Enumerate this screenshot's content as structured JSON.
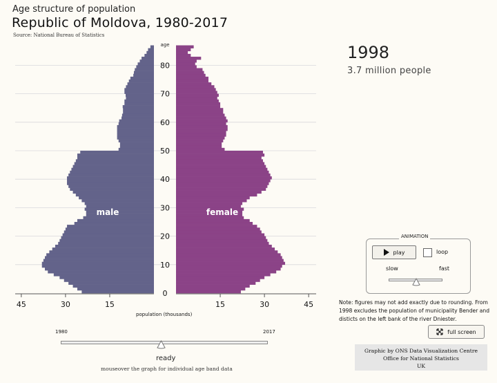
{
  "header": {
    "subtitle": "Age structure of population",
    "title": "Republic of Moldova, 1980-2017",
    "source": "Source: National Bureau of Statistics"
  },
  "info": {
    "year": "1998",
    "population": "3.7 million people"
  },
  "chart_data": {
    "type": "bar",
    "orientation": "horizontal-pyramid",
    "y_axis_title": "age",
    "xlabel": "population (thousands)",
    "x_ticks_left": [
      "45",
      "30",
      "15"
    ],
    "x_ticks_right": [
      "15",
      "30",
      "45"
    ],
    "xlim": [
      0,
      45
    ],
    "y_ticks": [
      "0",
      "10",
      "20",
      "30",
      "40",
      "50",
      "60",
      "70",
      "80"
    ],
    "ylim": [
      0,
      86
    ],
    "grid": true,
    "series": [
      {
        "name": "male",
        "color": "#63638a",
        "values": [
          24.5,
          26,
          27.5,
          29,
          30.5,
          32,
          34,
          36,
          37,
          38,
          38,
          37.5,
          37,
          36.5,
          35.5,
          34.5,
          33.5,
          32.5,
          32,
          31.5,
          31,
          30.5,
          30,
          29.5,
          27,
          26,
          24,
          23,
          23,
          23.5,
          23,
          23.5,
          24.5,
          25.5,
          26.5,
          27.5,
          28.5,
          29,
          29.5,
          29.5,
          29.5,
          29,
          28.5,
          28,
          27.5,
          27,
          26.5,
          26,
          26,
          25,
          12,
          11.5,
          11.5,
          12,
          12.5,
          12.5,
          12.5,
          12.5,
          12.5,
          12,
          11.8,
          11,
          10.8,
          10.5,
          10.5,
          10.6,
          10,
          10,
          9.5,
          9.6,
          10,
          10,
          9.5,
          9,
          8.5,
          8,
          7,
          6.8,
          6.5,
          6,
          5.5,
          4.8,
          4.2,
          3.2,
          2.5,
          2,
          1.2
        ]
      },
      {
        "name": "female",
        "color": "#8b4387",
        "values": [
          22,
          23.5,
          25,
          27,
          28.5,
          30,
          32,
          34,
          35.5,
          36,
          37,
          36.5,
          36,
          35.5,
          34.5,
          33.5,
          32.5,
          31.5,
          31,
          30.5,
          30,
          29,
          28.5,
          27.5,
          26,
          25,
          23,
          22.5,
          22.5,
          23,
          22,
          22.5,
          24,
          25,
          27.5,
          29,
          30.5,
          31,
          31.5,
          32,
          32.5,
          32,
          31.5,
          31,
          30.5,
          30,
          29.5,
          29,
          30,
          29.5,
          16.5,
          15.5,
          15.5,
          16,
          16.5,
          17,
          17,
          17.5,
          17.5,
          17,
          17.5,
          17,
          16.5,
          16,
          16,
          15,
          15,
          14.5,
          14,
          14.5,
          14,
          13.5,
          13,
          12,
          11,
          11,
          10,
          9.5,
          9,
          7,
          6.5,
          7,
          8.5,
          5,
          4,
          5,
          6
        ]
      }
    ]
  },
  "labels": {
    "male": "male",
    "female": "female"
  },
  "animation": {
    "legend": "ANIMATION",
    "play": "play",
    "loop": "loop",
    "slow": "slow",
    "fast": "fast",
    "speed": 0.5
  },
  "timeline": {
    "start": "1980",
    "end": "2017",
    "status": "ready",
    "position": 0.49,
    "hint": "mouseover the graph for individual age band data"
  },
  "note": "Note: figures may not add exactly due to rounding. From 1998 excludes the population of municipality Bender and disticts on the left bank of the river Dniester.",
  "fullscreen": {
    "label": "full screen"
  },
  "credit": {
    "line1": "Graphic by ONS Data Visualization Centre",
    "line2": "Office for National Statistics",
    "line3": "UK"
  }
}
